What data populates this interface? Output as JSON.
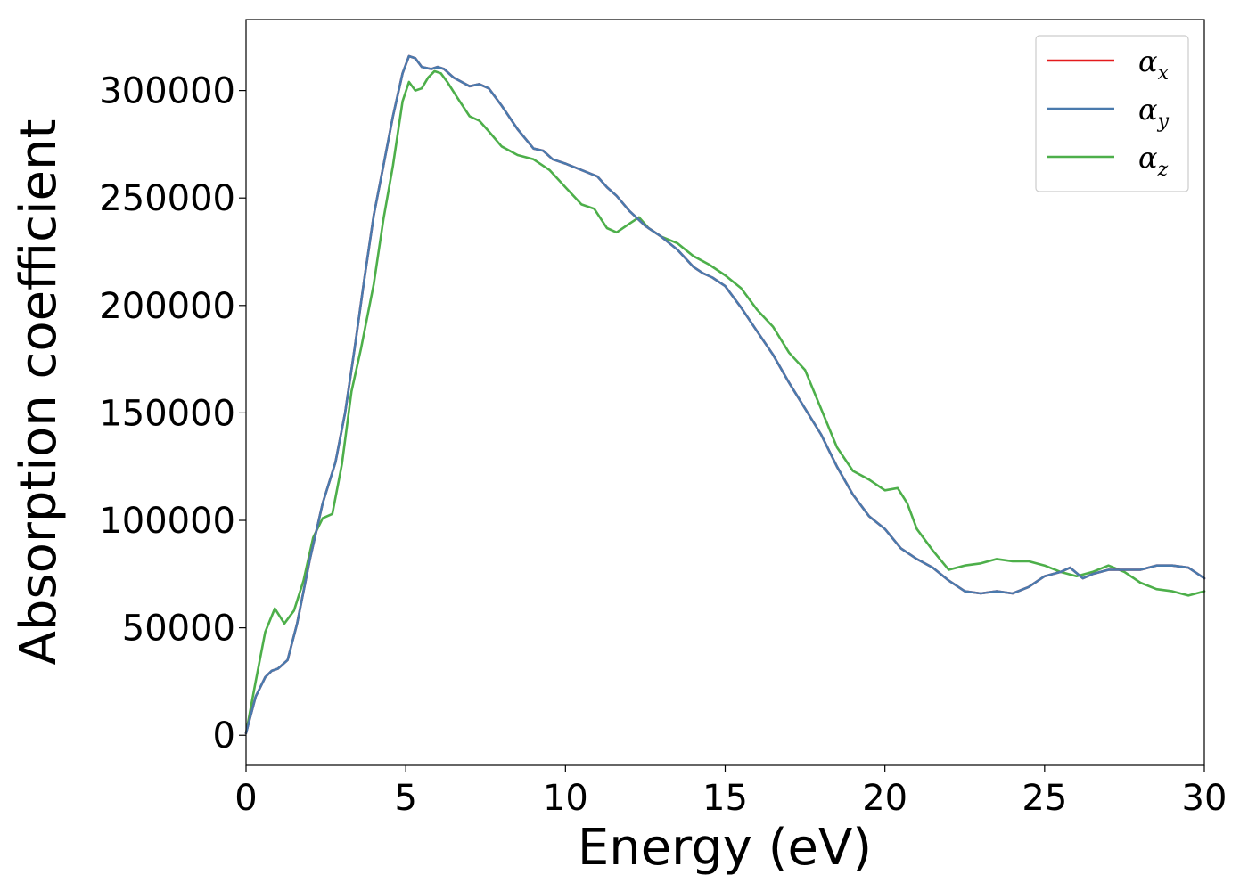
{
  "chart_data": {
    "type": "line",
    "title": "",
    "xlabel": "Energy (eV)",
    "ylabel": "Absorption coefficient",
    "xlim": [
      0,
      30
    ],
    "ylim": [
      -14000,
      333000
    ],
    "xticks": [
      0,
      5,
      10,
      15,
      20,
      25,
      30
    ],
    "yticks": [
      0,
      50000,
      100000,
      150000,
      200000,
      250000,
      300000
    ],
    "grid": false,
    "legend_position": "top-right",
    "series": [
      {
        "name": "α",
        "subscript": "x",
        "color": "#e41a1c",
        "x": [
          0,
          0.3,
          0.6,
          0.8,
          1.0,
          1.3,
          1.6,
          2.0,
          2.4,
          2.8,
          3.1,
          3.4,
          3.7,
          4.0,
          4.3,
          4.6,
          4.9,
          5.1,
          5.3,
          5.5,
          5.8,
          6.0,
          6.2,
          6.5,
          7.0,
          7.3,
          7.6,
          8.0,
          8.5,
          9.0,
          9.3,
          9.6,
          10.0,
          10.5,
          11.0,
          11.3,
          11.6,
          12.0,
          12.5,
          13.0,
          13.5,
          14.0,
          14.3,
          14.6,
          15.0,
          15.5,
          16.0,
          16.5,
          17.0,
          17.5,
          18.0,
          18.5,
          19.0,
          19.5,
          20.0,
          20.5,
          21.0,
          21.5,
          22.0,
          22.5,
          23.0,
          23.5,
          24.0,
          24.5,
          25.0,
          25.5,
          25.8,
          26.2,
          26.5,
          27.0,
          27.5,
          28.0,
          28.5,
          29.0,
          29.5,
          30.0
        ],
        "y": [
          1000,
          18000,
          27000,
          30000,
          31000,
          35000,
          52000,
          82000,
          108000,
          127000,
          150000,
          180000,
          212000,
          242000,
          265000,
          288000,
          308000,
          316000,
          315000,
          311000,
          310000,
          311000,
          310000,
          306000,
          302000,
          303000,
          301000,
          293000,
          282000,
          273000,
          272000,
          268000,
          266000,
          263000,
          260000,
          255000,
          251000,
          244000,
          237000,
          232000,
          226000,
          218000,
          215000,
          213000,
          209000,
          199000,
          188000,
          177000,
          164000,
          152000,
          140000,
          125000,
          112000,
          102000,
          96000,
          87000,
          82000,
          78000,
          72000,
          67000,
          66000,
          67000,
          66000,
          69000,
          74000,
          76000,
          78000,
          73000,
          75000,
          77000,
          77000,
          77000,
          79000,
          79000,
          78000,
          73000
        ]
      },
      {
        "name": "α",
        "subscript": "y",
        "color": "#4a7aad",
        "x": [
          0,
          0.3,
          0.6,
          0.8,
          1.0,
          1.3,
          1.6,
          2.0,
          2.4,
          2.8,
          3.1,
          3.4,
          3.7,
          4.0,
          4.3,
          4.6,
          4.9,
          5.1,
          5.3,
          5.5,
          5.8,
          6.0,
          6.2,
          6.5,
          7.0,
          7.3,
          7.6,
          8.0,
          8.5,
          9.0,
          9.3,
          9.6,
          10.0,
          10.5,
          11.0,
          11.3,
          11.6,
          12.0,
          12.5,
          13.0,
          13.5,
          14.0,
          14.3,
          14.6,
          15.0,
          15.5,
          16.0,
          16.5,
          17.0,
          17.5,
          18.0,
          18.5,
          19.0,
          19.5,
          20.0,
          20.5,
          21.0,
          21.5,
          22.0,
          22.5,
          23.0,
          23.5,
          24.0,
          24.5,
          25.0,
          25.5,
          25.8,
          26.2,
          26.5,
          27.0,
          27.5,
          28.0,
          28.5,
          29.0,
          29.5,
          30.0
        ],
        "y": [
          1000,
          18000,
          27000,
          30000,
          31000,
          35000,
          52000,
          82000,
          108000,
          127000,
          150000,
          180000,
          212000,
          242000,
          265000,
          288000,
          308000,
          316000,
          315000,
          311000,
          310000,
          311000,
          310000,
          306000,
          302000,
          303000,
          301000,
          293000,
          282000,
          273000,
          272000,
          268000,
          266000,
          263000,
          260000,
          255000,
          251000,
          244000,
          237000,
          232000,
          226000,
          218000,
          215000,
          213000,
          209000,
          199000,
          188000,
          177000,
          164000,
          152000,
          140000,
          125000,
          112000,
          102000,
          96000,
          87000,
          82000,
          78000,
          72000,
          67000,
          66000,
          67000,
          66000,
          69000,
          74000,
          76000,
          78000,
          73000,
          75000,
          77000,
          77000,
          77000,
          79000,
          79000,
          78000,
          73000
        ]
      },
      {
        "name": "α",
        "subscript": "z",
        "color": "#4daf4a",
        "x": [
          0,
          0.3,
          0.6,
          0.9,
          1.2,
          1.5,
          1.8,
          2.1,
          2.4,
          2.7,
          3.0,
          3.3,
          3.6,
          4.0,
          4.3,
          4.6,
          4.9,
          5.1,
          5.3,
          5.5,
          5.7,
          5.9,
          6.1,
          6.3,
          6.6,
          7.0,
          7.3,
          7.6,
          8.0,
          8.5,
          9.0,
          9.5,
          10.0,
          10.5,
          10.9,
          11.3,
          11.6,
          12.0,
          12.3,
          12.6,
          13.0,
          13.5,
          14.0,
          14.5,
          15.0,
          15.5,
          16.0,
          16.5,
          17.0,
          17.5,
          18.0,
          18.5,
          19.0,
          19.5,
          20.0,
          20.4,
          20.7,
          21.0,
          21.5,
          22.0,
          22.5,
          23.0,
          23.5,
          24.0,
          24.5,
          25.0,
          25.5,
          26.0,
          26.5,
          27.0,
          27.5,
          28.0,
          28.5,
          29.0,
          29.5,
          30.0
        ],
        "y": [
          1000,
          25000,
          48000,
          59000,
          52000,
          58000,
          72000,
          92000,
          101000,
          103000,
          126000,
          160000,
          180000,
          210000,
          240000,
          265000,
          295000,
          304000,
          300000,
          301000,
          306000,
          309000,
          308000,
          304000,
          297000,
          288000,
          286000,
          281000,
          274000,
          270000,
          268000,
          263000,
          255000,
          247000,
          245000,
          236000,
          234000,
          238000,
          241000,
          236000,
          232000,
          229000,
          223000,
          219000,
          214000,
          208000,
          198000,
          190000,
          178000,
          170000,
          152000,
          134000,
          123000,
          119000,
          114000,
          115000,
          108000,
          96000,
          86000,
          77000,
          79000,
          80000,
          82000,
          81000,
          81000,
          79000,
          76000,
          74000,
          76000,
          79000,
          76000,
          71000,
          68000,
          67000,
          65000,
          67000
        ]
      }
    ]
  }
}
